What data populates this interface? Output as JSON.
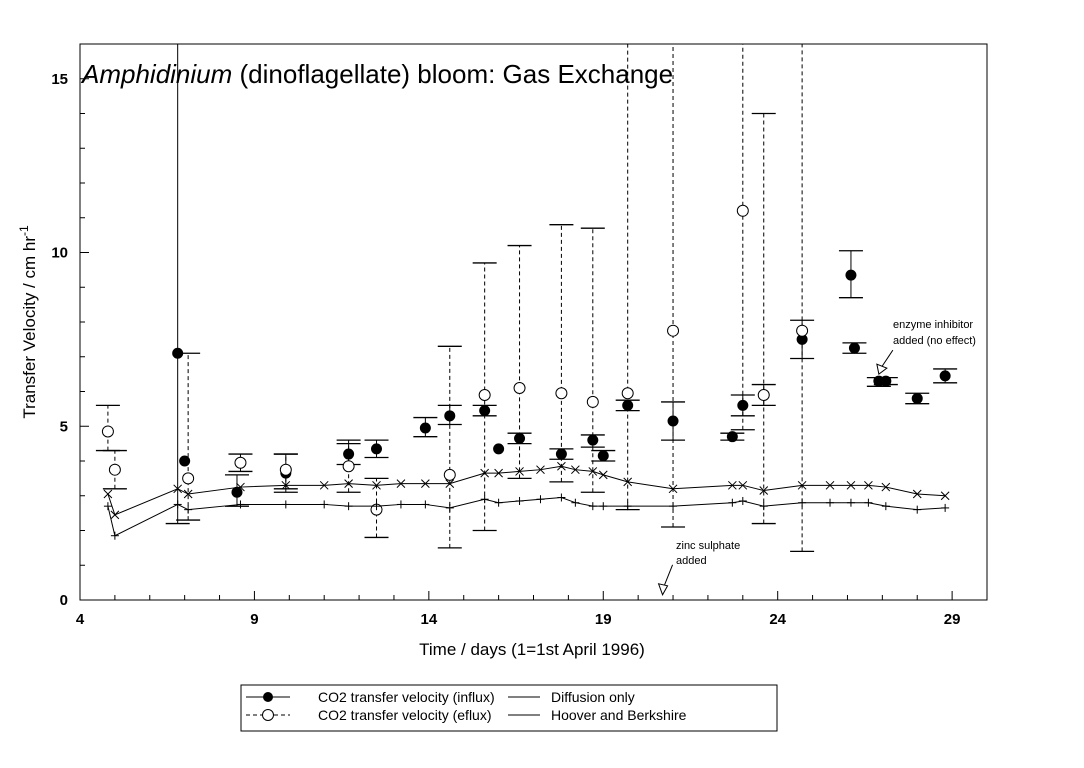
{
  "chart_data": {
    "type": "scatter",
    "title_italic": "Amphidinium",
    "title_rest": " (dinoflagellate) bloom: Gas Exchange",
    "xlabel": "Time / days (1=1st April 1996)",
    "ylabel_main": "Transfer Velocity / cm hr",
    "ylabel_sup": "-1",
    "xlim": [
      4,
      30
    ],
    "ylim": [
      0,
      16
    ],
    "xticks": [
      4,
      9,
      14,
      19,
      24,
      29
    ],
    "yticks": [
      0,
      5,
      10,
      15
    ],
    "grid": false,
    "legend_position": "bottom-center",
    "series": [
      {
        "name": "CO2 transfer velocity (influx)",
        "marker": "filled-circle",
        "errorbar": "solid",
        "points": [
          {
            "x": 6.8,
            "y": 7.1,
            "lo": 2.2,
            "hi": 16.0
          },
          {
            "x": 7.0,
            "y": 4.0
          },
          {
            "x": 8.5,
            "y": 3.1,
            "lo": 2.7,
            "hi": 3.6
          },
          {
            "x": 9.9,
            "y": 3.65,
            "lo": 3.1,
            "hi": 4.2
          },
          {
            "x": 11.7,
            "y": 4.2,
            "lo": 3.9,
            "hi": 4.5
          },
          {
            "x": 12.5,
            "y": 4.35,
            "lo": 4.1,
            "hi": 4.6
          },
          {
            "x": 13.9,
            "y": 4.95,
            "lo": 4.7,
            "hi": 5.25
          },
          {
            "x": 14.6,
            "y": 5.3,
            "lo": 5.05,
            "hi": 5.6
          },
          {
            "x": 15.6,
            "y": 5.45,
            "lo": 5.3,
            "hi": 5.6
          },
          {
            "x": 16.0,
            "y": 4.35
          },
          {
            "x": 16.6,
            "y": 4.65,
            "lo": 4.5,
            "hi": 4.8
          },
          {
            "x": 17.8,
            "y": 4.2,
            "lo": 4.05,
            "hi": 4.35
          },
          {
            "x": 18.7,
            "y": 4.6,
            "lo": 4.4,
            "hi": 4.75
          },
          {
            "x": 19.0,
            "y": 4.15,
            "lo": 4.0,
            "hi": 4.3
          },
          {
            "x": 19.7,
            "y": 5.6,
            "lo": 5.45,
            "hi": 5.75
          },
          {
            "x": 21.0,
            "y": 5.15,
            "lo": 4.6,
            "hi": 5.7
          },
          {
            "x": 22.7,
            "y": 4.7,
            "lo": 4.6,
            "hi": 4.8
          },
          {
            "x": 23.0,
            "y": 5.6,
            "lo": 5.3,
            "hi": 5.9
          },
          {
            "x": 23.6,
            "y": 5.9,
            "lo": 5.6,
            "hi": 6.2
          },
          {
            "x": 24.7,
            "y": 7.5,
            "lo": 6.95,
            "hi": 8.05
          },
          {
            "x": 26.1,
            "y": 9.35,
            "lo": 8.7,
            "hi": 10.05
          },
          {
            "x": 26.2,
            "y": 7.25,
            "lo": 7.1,
            "hi": 7.4
          },
          {
            "x": 26.9,
            "y": 6.3,
            "lo": 6.15,
            "hi": 6.4
          },
          {
            "x": 27.1,
            "y": 6.3,
            "lo": 6.2,
            "hi": 6.4
          },
          {
            "x": 28.0,
            "y": 5.8,
            "lo": 5.65,
            "hi": 5.95
          },
          {
            "x": 28.8,
            "y": 6.45,
            "lo": 6.25,
            "hi": 6.65
          }
        ]
      },
      {
        "name": "CO2 transfer velocity (eflux)",
        "marker": "open-circle",
        "errorbar": "dashed",
        "points": [
          {
            "x": 4.8,
            "y": 4.85,
            "lo": 4.3,
            "hi": 5.6
          },
          {
            "x": 5.0,
            "y": 3.75,
            "lo": 3.2,
            "hi": 4.3
          },
          {
            "x": 7.1,
            "y": 3.5,
            "lo": 2.3,
            "hi": 7.1
          },
          {
            "x": 8.6,
            "y": 3.95,
            "lo": 3.7,
            "hi": 4.2
          },
          {
            "x": 9.9,
            "y": 3.75,
            "lo": 3.2,
            "hi": 4.2
          },
          {
            "x": 11.7,
            "y": 3.85,
            "lo": 3.1,
            "hi": 4.6
          },
          {
            "x": 12.5,
            "y": 2.6,
            "lo": 1.8,
            "hi": 3.5
          },
          {
            "x": 14.6,
            "y": 3.6,
            "lo": 1.5,
            "hi": 7.3
          },
          {
            "x": 15.6,
            "y": 5.9,
            "lo": 2.0,
            "hi": 9.7
          },
          {
            "x": 16.6,
            "y": 6.1,
            "lo": 3.5,
            "hi": 10.2
          },
          {
            "x": 17.8,
            "y": 5.95,
            "lo": 3.4,
            "hi": 10.8
          },
          {
            "x": 18.7,
            "y": 5.7,
            "lo": 3.1,
            "hi": 10.7
          },
          {
            "x": 19.7,
            "y": 5.95,
            "lo": 2.6,
            "hi": 16.0
          },
          {
            "x": 21.0,
            "y": 7.75,
            "lo": 2.1,
            "hi": 16.0
          },
          {
            "x": 23.0,
            "y": 11.2,
            "lo": 4.9,
            "hi": 16.0
          },
          {
            "x": 23.6,
            "y": 5.9,
            "lo": 2.2,
            "hi": 14.0
          },
          {
            "x": 24.7,
            "y": 7.75,
            "lo": 1.4,
            "hi": 16.0
          }
        ]
      },
      {
        "name": "Diffusion only",
        "marker": "plus",
        "line": "solid",
        "x": [
          4.8,
          5.0,
          6.8,
          7.1,
          8.6,
          9.9,
          11.0,
          11.7,
          12.5,
          13.2,
          13.9,
          14.6,
          15.6,
          16.0,
          16.6,
          17.2,
          17.8,
          18.2,
          18.7,
          19.0,
          19.7,
          21.0,
          22.7,
          23.0,
          23.6,
          24.7,
          25.5,
          26.1,
          26.6,
          27.1,
          28.0,
          28.8
        ],
        "y": [
          2.7,
          1.85,
          2.75,
          2.6,
          2.75,
          2.75,
          2.75,
          2.7,
          2.7,
          2.75,
          2.75,
          2.65,
          2.9,
          2.8,
          2.85,
          2.9,
          2.95,
          2.8,
          2.7,
          2.7,
          2.7,
          2.7,
          2.8,
          2.85,
          2.7,
          2.8,
          2.8,
          2.8,
          2.8,
          2.7,
          2.6,
          2.65
        ]
      },
      {
        "name": "Hoover and Berkshire",
        "marker": "x",
        "line": "solid",
        "x": [
          4.8,
          5.0,
          6.8,
          7.1,
          8.6,
          9.9,
          11.0,
          11.7,
          12.5,
          13.2,
          13.9,
          14.6,
          15.6,
          16.0,
          16.6,
          17.2,
          17.8,
          18.2,
          18.7,
          19.0,
          19.7,
          21.0,
          22.7,
          23.0,
          23.6,
          24.7,
          25.5,
          26.1,
          26.6,
          27.1,
          28.0,
          28.8
        ],
        "y": [
          3.05,
          2.45,
          3.2,
          3.05,
          3.25,
          3.3,
          3.3,
          3.35,
          3.3,
          3.35,
          3.35,
          3.35,
          3.65,
          3.65,
          3.7,
          3.75,
          3.85,
          3.75,
          3.7,
          3.6,
          3.4,
          3.2,
          3.3,
          3.3,
          3.15,
          3.3,
          3.3,
          3.3,
          3.3,
          3.25,
          3.05,
          3.0
        ]
      }
    ],
    "annotations": [
      {
        "line1": "enzyme inhibitor",
        "line2": "added (no effect)",
        "x": 26.8,
        "y": 7.4,
        "arrow_x": 26.9,
        "arrow_y": 6.5
      },
      {
        "line1": "zinc sulphate",
        "line2": "added",
        "x": 20.7,
        "y": 1.45,
        "arrow_x": 20.7,
        "arrow_y": 0.15
      }
    ]
  }
}
